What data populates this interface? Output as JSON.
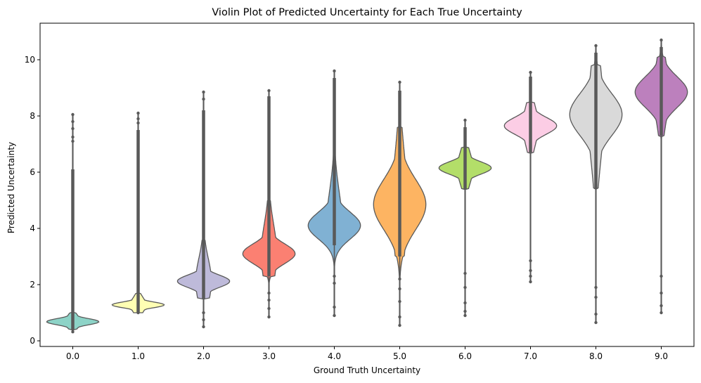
{
  "chart_data": {
    "type": "violin",
    "title": "Violin Plot of Predicted Uncertainty for Each True Uncertainty",
    "xlabel": "Ground Truth Uncertainty",
    "ylabel": "Predicted Uncertainty",
    "ylim": [
      -0.2,
      11.3
    ],
    "yticks": [
      0,
      2,
      4,
      6,
      8,
      10
    ],
    "grid": false,
    "categories": [
      "0.0",
      "1.0",
      "2.0",
      "3.0",
      "4.0",
      "5.0",
      "6.0",
      "7.0",
      "8.0",
      "9.0"
    ],
    "colors": [
      "#8dd3c7",
      "#ffffb3",
      "#bebada",
      "#fb8072",
      "#80b1d3",
      "#fdb462",
      "#b3de69",
      "#fccde5",
      "#d9d9d9",
      "#bc80bd"
    ],
    "outline_color": "#595959",
    "violins": [
      {
        "x": "0.0",
        "mode": 0.68,
        "spread": 0.11,
        "bulk_low": 0.4,
        "bulk_high": 1.0,
        "min": 0.32,
        "max": 8.05,
        "dense_to": 6.1,
        "outliers": [
          7.1,
          7.25,
          7.55,
          7.8
        ]
      },
      {
        "x": "1.0",
        "mode": 1.28,
        "spread": 0.1,
        "bulk_low": 1.0,
        "bulk_high": 1.7,
        "min": 1.0,
        "max": 8.1,
        "dense_to": 7.5,
        "outliers": [
          7.75,
          7.9
        ]
      },
      {
        "x": "2.0",
        "mode": 2.12,
        "spread": 0.22,
        "bulk_low": 1.5,
        "bulk_high": 3.6,
        "min": 0.5,
        "max": 8.85,
        "dense_to": 8.2,
        "outliers": [
          0.75,
          1.0,
          8.6
        ]
      },
      {
        "x": "3.0",
        "mode": 3.1,
        "spread": 0.35,
        "bulk_low": 2.3,
        "bulk_high": 5.0,
        "min": 0.85,
        "max": 8.9,
        "dense_to": 8.7,
        "outliers": [
          1.15,
          1.45,
          1.7
        ]
      },
      {
        "x": "4.0",
        "mode": 4.1,
        "spread": 0.48,
        "bulk_low": 3.4,
        "bulk_high": 6.6,
        "min": 0.9,
        "max": 9.6,
        "dense_to": 9.35,
        "outliers": [
          1.2,
          2.05,
          2.3
        ]
      },
      {
        "x": "5.0",
        "mode": 4.85,
        "spread": 0.9,
        "bulk_low": 3.0,
        "bulk_high": 7.6,
        "min": 0.55,
        "max": 9.2,
        "dense_to": 8.9,
        "outliers": [
          0.85,
          1.4,
          1.85,
          2.2
        ]
      },
      {
        "x": "6.0",
        "mode": 6.15,
        "spread": 0.22,
        "bulk_low": 5.4,
        "bulk_high": 6.9,
        "min": 0.9,
        "max": 7.85,
        "dense_to": 7.6,
        "outliers": [
          1.05,
          1.35,
          1.9,
          2.4
        ]
      },
      {
        "x": "7.0",
        "mode": 7.65,
        "spread": 0.3,
        "bulk_low": 6.7,
        "bulk_high": 8.5,
        "min": 2.1,
        "max": 9.55,
        "dense_to": 9.4,
        "outliers": [
          2.3,
          2.5,
          2.85
        ]
      },
      {
        "x": "8.0",
        "mode": 8.05,
        "spread": 0.75,
        "bulk_low": 5.4,
        "bulk_high": 9.8,
        "min": 0.65,
        "max": 10.5,
        "dense_to": 10.25,
        "outliers": [
          0.95,
          1.55,
          1.9
        ]
      },
      {
        "x": "9.0",
        "mode": 8.85,
        "spread": 0.55,
        "bulk_low": 7.3,
        "bulk_high": 10.1,
        "min": 1.0,
        "max": 10.7,
        "dense_to": 10.45,
        "outliers": [
          1.25,
          1.7,
          2.3
        ]
      }
    ]
  }
}
